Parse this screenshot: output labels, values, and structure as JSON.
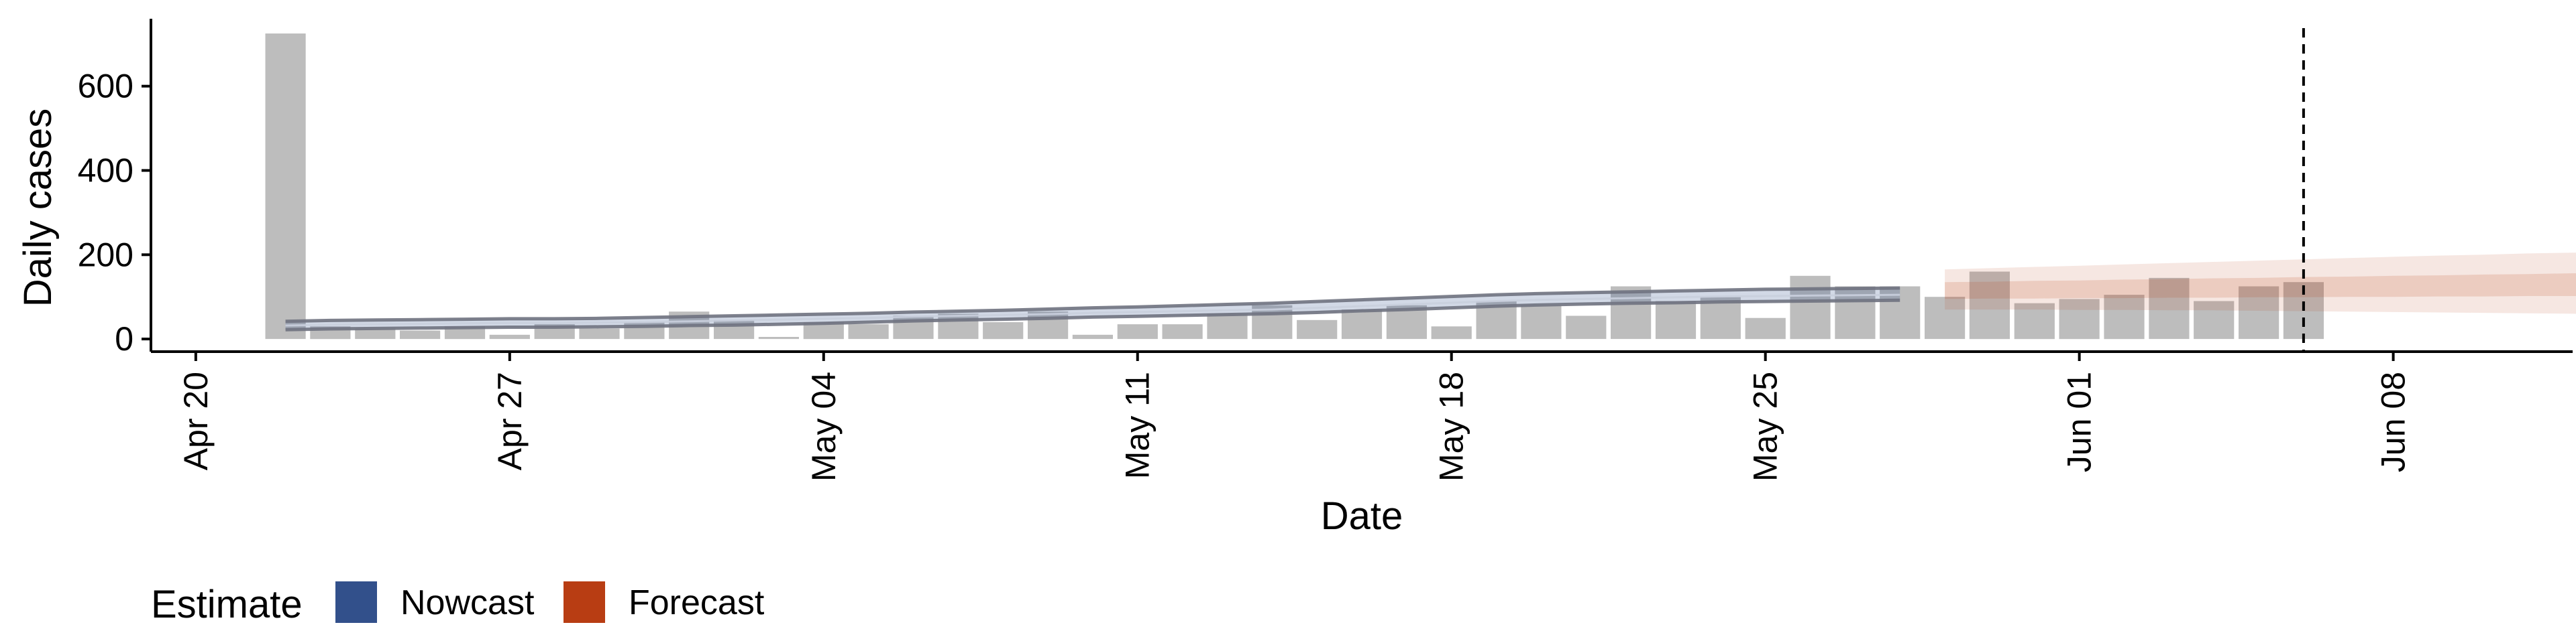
{
  "chart_data": {
    "type": "bar",
    "xlabel": "Date",
    "ylabel": "Daily cases",
    "xlim": [
      "2020-04-19",
      "2020-06-12"
    ],
    "ylim": [
      -30,
      760
    ],
    "y_ticks": [
      0,
      200,
      400,
      600
    ],
    "y_tick_labels": [
      "0",
      "200",
      "400",
      "600"
    ],
    "x_ticks": [
      "2020-04-20",
      "2020-04-27",
      "2020-05-04",
      "2020-05-11",
      "2020-05-18",
      "2020-05-25",
      "2020-06-01",
      "2020-06-08"
    ],
    "x_tick_labels": [
      "Apr 20",
      "Apr 27",
      "May 04",
      "May 11",
      "May 18",
      "May 25",
      "Jun 01",
      "Jun 08"
    ],
    "grid": false,
    "bar_color": "#bdbdbd",
    "vline_date": "2020-06-06",
    "bars": {
      "start_date": "2020-04-22",
      "values": [
        725,
        30,
        25,
        20,
        30,
        10,
        35,
        25,
        40,
        65,
        45,
        5,
        40,
        35,
        55,
        60,
        40,
        65,
        10,
        35,
        35,
        60,
        80,
        45,
        70,
        80,
        30,
        90,
        80,
        55,
        125,
        90,
        100,
        50,
        150,
        125,
        125,
        100,
        160,
        85,
        95,
        105,
        145,
        90,
        125,
        135
      ]
    },
    "series": [
      {
        "name": "Nowcast",
        "color": "#32508b",
        "start_date": "2020-04-22",
        "median": [
          32,
          34,
          35,
          36,
          37,
          38,
          38,
          39,
          40,
          42,
          44,
          46,
          48,
          50,
          53,
          55,
          57,
          59,
          62,
          64,
          66,
          68,
          70,
          74,
          78,
          82,
          86,
          90,
          93,
          95,
          97,
          99,
          101,
          102,
          103,
          104,
          105
        ],
        "lower": [
          22,
          24,
          25,
          26,
          27,
          28,
          28,
          29,
          30,
          32,
          33,
          35,
          37,
          40,
          43,
          45,
          47,
          49,
          52,
          54,
          56,
          58,
          60,
          63,
          67,
          70,
          74,
          78,
          81,
          83,
          85,
          86,
          88,
          89,
          90,
          91,
          92
        ],
        "upper": [
          42,
          44,
          45,
          46,
          47,
          48,
          48,
          49,
          51,
          53,
          55,
          57,
          59,
          61,
          64,
          66,
          68,
          71,
          74,
          76,
          79,
          82,
          85,
          89,
          93,
          97,
          101,
          105,
          108,
          110,
          112,
          114,
          116,
          118,
          119,
          120,
          121
        ]
      },
      {
        "name": "Forecast",
        "color": "#b83d13",
        "start_date": "2020-05-29",
        "median": [
          115,
          116,
          117,
          118,
          119,
          120,
          121,
          122,
          123,
          124,
          125,
          126,
          127,
          128,
          129,
          130,
          131,
          132,
          133,
          134
        ],
        "lower50": [
          95,
          96,
          96,
          97,
          97,
          98,
          98,
          99,
          99,
          100,
          100,
          101,
          101,
          102,
          102,
          103,
          103,
          104,
          104,
          105
        ],
        "upper50": [
          135,
          136,
          138,
          139,
          141,
          142,
          144,
          145,
          147,
          148,
          150,
          151,
          153,
          154,
          156,
          157,
          159,
          160,
          162,
          163
        ],
        "lower90": [
          70,
          70,
          70,
          69,
          69,
          68,
          68,
          67,
          66,
          65,
          64,
          63,
          62,
          61,
          60,
          58,
          56,
          54,
          52,
          50
        ],
        "upper90": [
          165,
          168,
          171,
          174,
          177,
          180,
          183,
          186,
          189,
          192,
          195,
          198,
          200,
          203,
          205,
          207,
          209,
          211,
          213,
          215
        ]
      }
    ],
    "legend": {
      "title": "Estimate",
      "position": "bottom-left",
      "items": [
        {
          "label": "Nowcast",
          "color": "#32508b"
        },
        {
          "label": "Forecast",
          "color": "#b83d13"
        }
      ]
    }
  }
}
